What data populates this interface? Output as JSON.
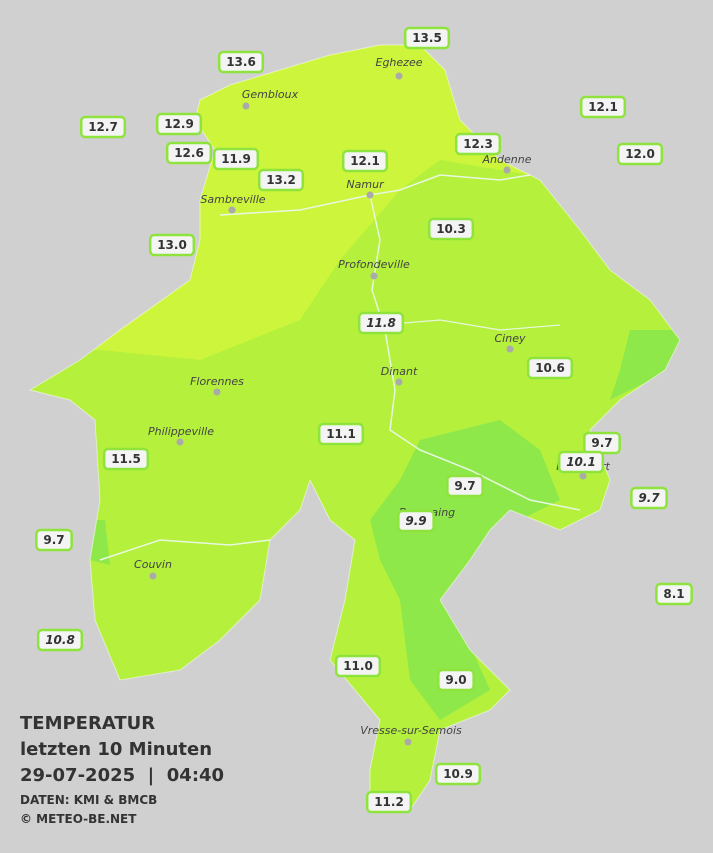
{
  "legend": {
    "title": "TEMPERATUR",
    "subtitle": "letzten 10 Minuten",
    "datetime": "29-07-2025  |  04:40",
    "source": "DATEN: KMI & BMCB",
    "copyright": "© METEO-BE.NET"
  },
  "towns": [
    "Eghezee",
    "Gembloux",
    "Andenne",
    "Namur",
    "Sambreville",
    "Profondeville",
    "Ciney",
    "Dinant",
    "Florennes",
    "Philippeville",
    "Rochefort",
    "Beauraing",
    "Couvin",
    "Vresse-sur-Semois"
  ],
  "stations": [
    {
      "label": "13.5"
    },
    {
      "label": "13.6"
    },
    {
      "label": "12.1"
    },
    {
      "label": "12.7"
    },
    {
      "label": "12.9"
    },
    {
      "label": "12.3"
    },
    {
      "label": "12.6"
    },
    {
      "label": "11.9"
    },
    {
      "label": "12.1"
    },
    {
      "label": "12.0"
    },
    {
      "label": "13.2"
    },
    {
      "label": "10.3"
    },
    {
      "label": "13.0"
    },
    {
      "label": "11.8",
      "italic": true
    },
    {
      "label": "10.6"
    },
    {
      "label": "11.1"
    },
    {
      "label": "9.7"
    },
    {
      "label": "10.1",
      "italic": true
    },
    {
      "label": "11.5"
    },
    {
      "label": "9.7"
    },
    {
      "label": "9.7",
      "italic": true
    },
    {
      "label": "9.9",
      "italic": true
    },
    {
      "label": "9.7"
    },
    {
      "label": "8.1"
    },
    {
      "label": "10.8",
      "italic": true
    },
    {
      "label": "11.0"
    },
    {
      "label": "9.0"
    },
    {
      "label": "10.9"
    },
    {
      "label": "11.2"
    }
  ]
}
